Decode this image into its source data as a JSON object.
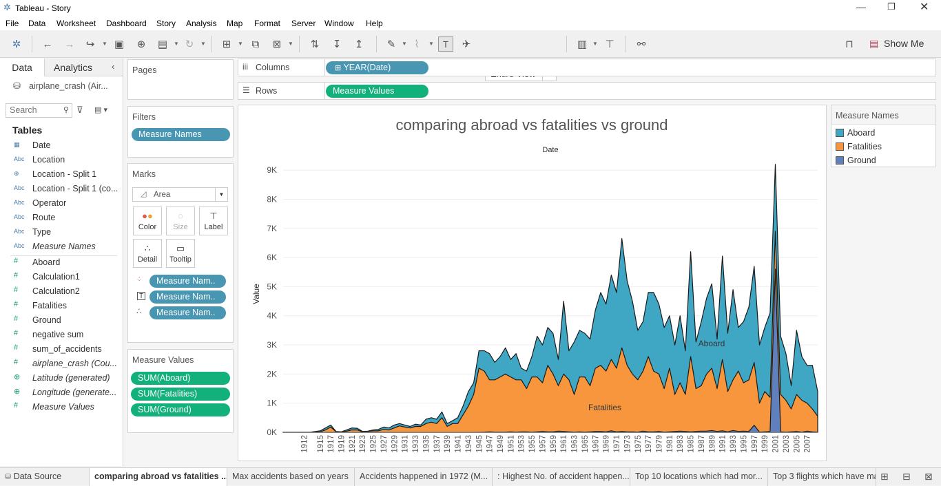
{
  "window": {
    "title": "Tableau - Story"
  },
  "menu": [
    "File",
    "Data",
    "Worksheet",
    "Dashboard",
    "Story",
    "Analysis",
    "Map",
    "Format",
    "Server",
    "Window",
    "Help"
  ],
  "toolbar": {
    "view_select": "Entire View",
    "show_me": "Show Me"
  },
  "left_pane": {
    "tab_data": "Data",
    "tab_analytics": "Analytics",
    "datasource": "airplane_crash (Air...",
    "search_placeholder": "Search",
    "tables_header": "Tables",
    "dimensions": [
      {
        "icon": "calendar-icon",
        "name": "Date"
      },
      {
        "icon": "abc-icon",
        "name": "Location"
      },
      {
        "icon": "globe-icon",
        "name": "Location - Split 1"
      },
      {
        "icon": "abc-icon",
        "name": "Location - Split 1 (co..."
      },
      {
        "icon": "abc-icon",
        "name": "Operator"
      },
      {
        "icon": "abc-icon",
        "name": "Route"
      },
      {
        "icon": "abc-icon",
        "name": "Type"
      },
      {
        "icon": "abc-icon",
        "name": "Measure Names"
      }
    ],
    "measures": [
      {
        "icon": "hash-icon",
        "name": "Aboard"
      },
      {
        "icon": "hash-icon",
        "name": "Calculation1"
      },
      {
        "icon": "hash-icon",
        "name": "Calculation2"
      },
      {
        "icon": "hash-icon",
        "name": "Fatalities"
      },
      {
        "icon": "hash-icon",
        "name": "Ground"
      },
      {
        "icon": "hash-icon",
        "name": "negative sum"
      },
      {
        "icon": "hash-icon",
        "name": "sum_of_accidents"
      },
      {
        "icon": "hash-icon",
        "name": "airplane_crash (Cou..."
      },
      {
        "icon": "globe-icon",
        "name": "Latitude (generated)"
      },
      {
        "icon": "globe-icon",
        "name": "Longitude (generate..."
      },
      {
        "icon": "hash-icon",
        "name": "Measure Values"
      }
    ]
  },
  "cards": {
    "pages": "Pages",
    "filters": "Filters",
    "filter_pill": "Measure Names",
    "marks": "Marks",
    "mark_type": "Area",
    "mark_buttons": [
      "Color",
      "Size",
      "Label",
      "Detail",
      "Tooltip"
    ],
    "mark_pills": [
      "Measure Nam..",
      "Measure Nam..",
      "Measure Nam.."
    ],
    "measure_values": "Measure Values",
    "mv_pills": [
      "SUM(Aboard)",
      "SUM(Fatalities)",
      "SUM(Ground)"
    ]
  },
  "shelves": {
    "columns_label": "Columns",
    "columns_pill": "YEAR(Date)",
    "rows_label": "Rows",
    "rows_pill": "Measure Values"
  },
  "legend": {
    "title": "Measure Names",
    "colors": {
      "Aboard": "#3fa6c4",
      "Fatalities": "#f7963c",
      "Ground": "#5f7fbd"
    }
  },
  "chart_data": {
    "type": "area",
    "title": "comparing abroad vs fatalities vs ground",
    "xlabel": "Date",
    "ylabel": "Value",
    "ylim": [
      0,
      9500
    ],
    "yticks": [
      0,
      1000,
      2000,
      3000,
      4000,
      5000,
      6000,
      7000,
      8000,
      9000
    ],
    "ytick_labels": [
      "0K",
      "1K",
      "2K",
      "3K",
      "4K",
      "5K",
      "6K",
      "7K",
      "8K",
      "9K"
    ],
    "xtick_labels": [
      "1912",
      "1915",
      "1917",
      "1919",
      "1921",
      "1923",
      "1925",
      "1927",
      "1929",
      "1931",
      "1933",
      "1935",
      "1937",
      "1939",
      "1941",
      "1943",
      "1945",
      "1947",
      "1949",
      "1951",
      "1953",
      "1955",
      "1957",
      "1959",
      "1961",
      "1963",
      "1965",
      "1967",
      "1969",
      "1971",
      "1973",
      "1975",
      "1977",
      "1979",
      "1981",
      "1983",
      "1985",
      "1987",
      "1989",
      "1991",
      "1993",
      "1995",
      "1997",
      "1999",
      "2001",
      "2003",
      "2005",
      "2007"
    ],
    "x": [
      1908,
      1912,
      1913,
      1915,
      1916,
      1917,
      1918,
      1919,
      1920,
      1921,
      1922,
      1923,
      1924,
      1925,
      1926,
      1927,
      1928,
      1929,
      1930,
      1931,
      1932,
      1933,
      1934,
      1935,
      1936,
      1937,
      1938,
      1939,
      1940,
      1941,
      1942,
      1943,
      1944,
      1945,
      1946,
      1947,
      1948,
      1949,
      1950,
      1951,
      1952,
      1953,
      1954,
      1955,
      1956,
      1957,
      1958,
      1959,
      1960,
      1961,
      1962,
      1963,
      1964,
      1965,
      1966,
      1967,
      1968,
      1969,
      1970,
      1971,
      1972,
      1973,
      1974,
      1975,
      1976,
      1977,
      1978,
      1979,
      1980,
      1981,
      1982,
      1983,
      1984,
      1985,
      1986,
      1987,
      1988,
      1989,
      1990,
      1991,
      1992,
      1993,
      1994,
      1995,
      1996,
      1997,
      1998,
      1999,
      2000,
      2001,
      2002,
      2003,
      2004,
      2005,
      2006,
      2007,
      2008,
      2009
    ],
    "series": [
      {
        "name": "Aboard",
        "values": [
          2,
          5,
          5,
          50,
          150,
          250,
          30,
          20,
          80,
          150,
          140,
          30,
          40,
          80,
          100,
          180,
          150,
          250,
          300,
          250,
          200,
          280,
          250,
          450,
          500,
          450,
          700,
          300,
          400,
          500,
          900,
          1400,
          1700,
          2800,
          2800,
          2700,
          2400,
          2600,
          2900,
          2500,
          2700,
          2200,
          2100,
          2600,
          3300,
          3000,
          3600,
          3400,
          2500,
          4500,
          2800,
          3100,
          3500,
          3400,
          3200,
          4200,
          4800,
          4400,
          5400,
          4800,
          6650,
          5200,
          4500,
          3500,
          3800,
          4800,
          4800,
          4400,
          3600,
          4000,
          3000,
          4000,
          2800,
          6200,
          3100,
          3800,
          4600,
          5100,
          3200,
          6050,
          3400,
          4900,
          3600,
          3800,
          4300,
          5700,
          3000,
          3600,
          4100,
          9200,
          3300,
          2700,
          1600,
          3500,
          2600,
          2300,
          2300,
          1400
        ]
      },
      {
        "name": "Fatalities",
        "values": [
          1,
          3,
          3,
          20,
          80,
          180,
          20,
          10,
          40,
          80,
          80,
          20,
          30,
          50,
          50,
          100,
          80,
          150,
          220,
          180,
          150,
          200,
          200,
          300,
          350,
          300,
          500,
          200,
          300,
          300,
          600,
          900,
          1300,
          2200,
          2100,
          1800,
          1800,
          1900,
          2000,
          1900,
          1800,
          1800,
          1500,
          1900,
          1900,
          1700,
          2300,
          2000,
          1600,
          2000,
          1800,
          1300,
          1900,
          1900,
          1600,
          2200,
          2300,
          2100,
          2500,
          2200,
          2900,
          2300,
          2000,
          1800,
          2100,
          2600,
          2100,
          2000,
          1500,
          2200,
          1300,
          1700,
          1300,
          2600,
          1500,
          1600,
          2000,
          2200,
          1500,
          2500,
          1400,
          1800,
          2100,
          1700,
          1800,
          2400,
          1000,
          1400,
          1200,
          6900,
          1300,
          1100,
          800,
          1300,
          1100,
          1000,
          800,
          550
        ]
      },
      {
        "name": "Ground",
        "values": [
          0,
          0,
          0,
          0,
          0,
          0,
          0,
          0,
          0,
          0,
          0,
          0,
          0,
          0,
          0,
          0,
          0,
          0,
          0,
          0,
          0,
          0,
          0,
          0,
          0,
          0,
          0,
          0,
          0,
          0,
          0,
          0,
          0,
          5,
          10,
          20,
          10,
          10,
          10,
          20,
          10,
          20,
          20,
          10,
          20,
          30,
          20,
          20,
          40,
          30,
          20,
          10,
          20,
          10,
          20,
          30,
          30,
          20,
          50,
          20,
          30,
          20,
          20,
          10,
          40,
          20,
          20,
          30,
          10,
          20,
          30,
          40,
          30,
          20,
          30,
          40,
          40,
          60,
          30,
          50,
          20,
          60,
          30,
          40,
          30,
          240,
          10,
          20,
          30,
          5600,
          20,
          10,
          20,
          30,
          10,
          40,
          20,
          10
        ]
      }
    ],
    "annotations": [
      {
        "text": "Aboard"
      },
      {
        "text": "Fatalities"
      }
    ]
  },
  "bottom_tabs": [
    "Data Source",
    "comparing abroad vs fatalities ...",
    "Max accidents based on years",
    "Accidents happened in 1972 (M...",
    ": Highest No. of accident happen...",
    "Top 10 locations which had mor...",
    "Top 3 flights which have ma"
  ]
}
